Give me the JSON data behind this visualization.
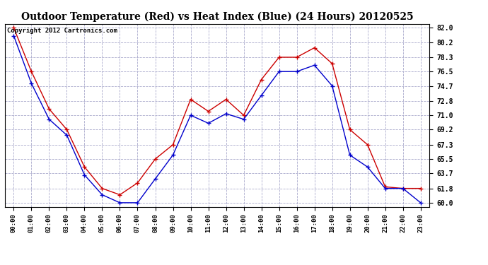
{
  "title": "Outdoor Temperature (Red) vs Heat Index (Blue) (24 Hours) 20120525",
  "copyright": "Copyright 2012 Cartronics.com",
  "x_labels": [
    "00:00",
    "01:00",
    "02:00",
    "03:00",
    "04:00",
    "05:00",
    "06:00",
    "07:00",
    "08:00",
    "09:00",
    "10:00",
    "11:00",
    "12:00",
    "13:00",
    "14:00",
    "15:00",
    "16:00",
    "17:00",
    "18:00",
    "19:00",
    "20:00",
    "21:00",
    "22:00",
    "23:00"
  ],
  "temp_red": [
    82.0,
    76.5,
    71.8,
    69.2,
    64.5,
    61.8,
    61.0,
    62.5,
    65.5,
    67.3,
    73.0,
    71.5,
    73.0,
    71.0,
    75.5,
    78.3,
    78.3,
    79.5,
    77.5,
    69.2,
    67.3,
    62.0,
    61.8,
    61.8
  ],
  "heat_blue": [
    81.0,
    75.0,
    70.5,
    68.5,
    63.5,
    61.0,
    60.0,
    60.0,
    63.0,
    66.0,
    71.0,
    70.0,
    71.2,
    70.5,
    73.5,
    76.5,
    76.5,
    77.3,
    74.7,
    66.0,
    64.5,
    61.8,
    61.8,
    60.0
  ],
  "ylim": [
    59.5,
    82.5
  ],
  "yticks": [
    60.0,
    61.8,
    63.7,
    65.5,
    67.3,
    69.2,
    71.0,
    72.8,
    74.7,
    76.5,
    78.3,
    80.2,
    82.0
  ],
  "bg_color": "#ffffff",
  "plot_bg_color": "#ffffff",
  "grid_color": "#aaaacc",
  "red_color": "#cc0000",
  "blue_color": "#0000cc",
  "title_fontsize": 10,
  "copyright_fontsize": 6.5
}
